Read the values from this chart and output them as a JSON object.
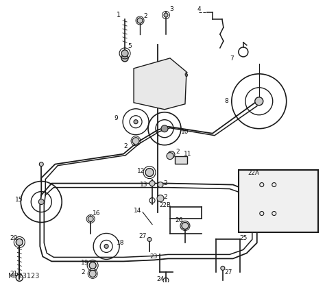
{
  "bg_color": "#ffffff",
  "line_color": "#1a1a1a",
  "label_color": "#111111",
  "diagram_id": "MP23123",
  "fig_width": 4.74,
  "fig_height": 4.13,
  "dpi": 100
}
